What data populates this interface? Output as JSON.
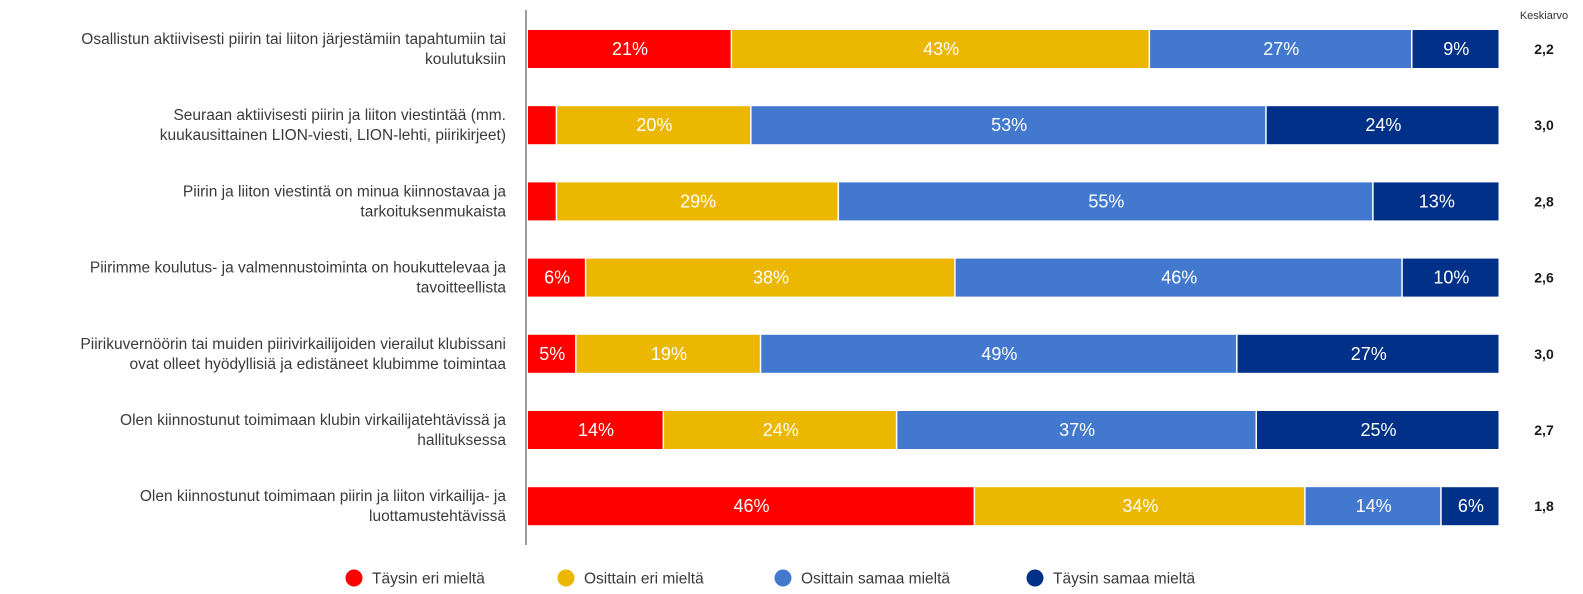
{
  "chart_data": {
    "type": "bar",
    "orientation": "horizontal",
    "stacked": true,
    "percent": true,
    "categories": [
      [
        "Osallistun aktiivisesti piirin tai liiton järjestämiin tapahtumiin tai",
        "koulutuksiin"
      ],
      [
        "Seuraan aktiivisesti piirin ja liiton viestintää (mm.",
        "kuukausittainen LION-viesti, LION-lehti, piirikirjeet)"
      ],
      [
        "Piirin ja liiton viestintä on minua kiinnostavaa ja",
        "tarkoituksenmukaista"
      ],
      [
        "Piirimme koulutus- ja valmennustoiminta on houkuttelevaa ja",
        "tavoitteellista"
      ],
      [
        "Piirikuvernöörin tai muiden piirivirkailijoiden vierailut klubissani",
        "ovat olleet hyödyllisiä ja edistäneet klubimme toimintaa"
      ],
      [
        "Olen kiinnostunut toimimaan klubin virkailijatehtävissä ja",
        "hallituksessa"
      ],
      [
        "Olen kiinnostunut toimimaan piirin ja liiton virkailija- ja",
        "luottamustehtävissä"
      ]
    ],
    "series": [
      {
        "name": "Täysin eri mieltä",
        "color": "#ff0000",
        "values": [
          21,
          3,
          3,
          6,
          5,
          14,
          46
        ]
      },
      {
        "name": "Osittain eri mieltä",
        "color": "#ebb700",
        "values": [
          43,
          20,
          29,
          38,
          19,
          24,
          34
        ]
      },
      {
        "name": "Osittain samaa mieltä",
        "color": "#4279cf",
        "values": [
          27,
          53,
          55,
          46,
          49,
          37,
          14
        ]
      },
      {
        "name": "Täysin samaa mieltä",
        "color": "#003087",
        "values": [
          9,
          24,
          13,
          10,
          27,
          25,
          6
        ]
      }
    ],
    "data_labels": [
      [
        "21%",
        "43%",
        "27%",
        "9%"
      ],
      [
        "",
        "20%",
        "53%",
        "24%"
      ],
      [
        "",
        "29%",
        "55%",
        "13%"
      ],
      [
        "6%",
        "38%",
        "46%",
        "10%"
      ],
      [
        "5%",
        "19%",
        "49%",
        "27%"
      ],
      [
        "14%",
        "24%",
        "37%",
        "25%"
      ],
      [
        "46%",
        "34%",
        "14%",
        "6%"
      ]
    ],
    "average_header": "Keskiarvo",
    "averages": [
      "2,2",
      "3,0",
      "2,8",
      "2,6",
      "3,0",
      "2,7",
      "1,8"
    ],
    "xlim": [
      0,
      100
    ],
    "grid": false,
    "legend_position": "bottom",
    "title": "",
    "xlabel": "",
    "ylabel": ""
  }
}
